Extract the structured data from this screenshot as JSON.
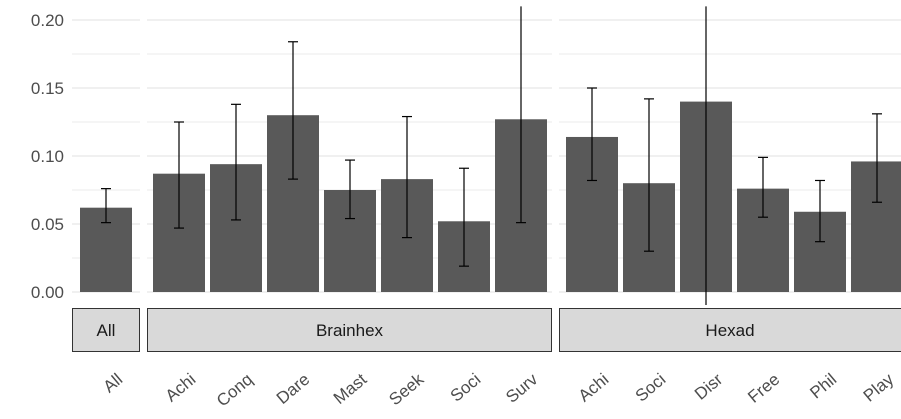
{
  "chart_data": {
    "type": "bar",
    "title": "",
    "xlabel": "",
    "ylabel": "",
    "ylim": [
      0,
      0.21
    ],
    "y_ticks": [
      "0.00",
      "0.05",
      "0.10",
      "0.15",
      "0.20"
    ],
    "y_tick_values": [
      0,
      0.05,
      0.1,
      0.15,
      0.2
    ],
    "grid": true,
    "facets": [
      {
        "label": "All",
        "categories": [
          "All"
        ],
        "values": [
          0.062
        ],
        "error_low": [
          0.051
        ],
        "error_high": [
          0.076
        ]
      },
      {
        "label": "Brainhex",
        "categories": [
          "Achi",
          "Conq",
          "Dare",
          "Mast",
          "Seek",
          "Soci",
          "Surv"
        ],
        "values": [
          0.087,
          0.094,
          0.13,
          0.075,
          0.083,
          0.052,
          0.127
        ],
        "error_low": [
          0.047,
          0.053,
          0.083,
          0.054,
          0.04,
          0.019,
          0.051
        ],
        "error_high": [
          0.125,
          0.138,
          0.184,
          0.097,
          0.129,
          0.091,
          0.21
        ]
      },
      {
        "label": "Hexad",
        "categories": [
          "Achi",
          "Soci",
          "Disr",
          "Free",
          "Phil",
          "Play"
        ],
        "values": [
          0.114,
          0.08,
          0.14,
          0.076,
          0.059,
          0.096
        ],
        "error_low": [
          0.082,
          0.03,
          -0.01,
          0.055,
          0.037,
          0.066
        ],
        "error_high": [
          0.15,
          0.142,
          0.21,
          0.099,
          0.082,
          0.131
        ]
      }
    ],
    "colors": {
      "bar": "#595959",
      "grid": "#ebebeb",
      "strip_fill": "#d9d9d9",
      "strip_border": "#333333",
      "errorbar": "#000000"
    }
  }
}
